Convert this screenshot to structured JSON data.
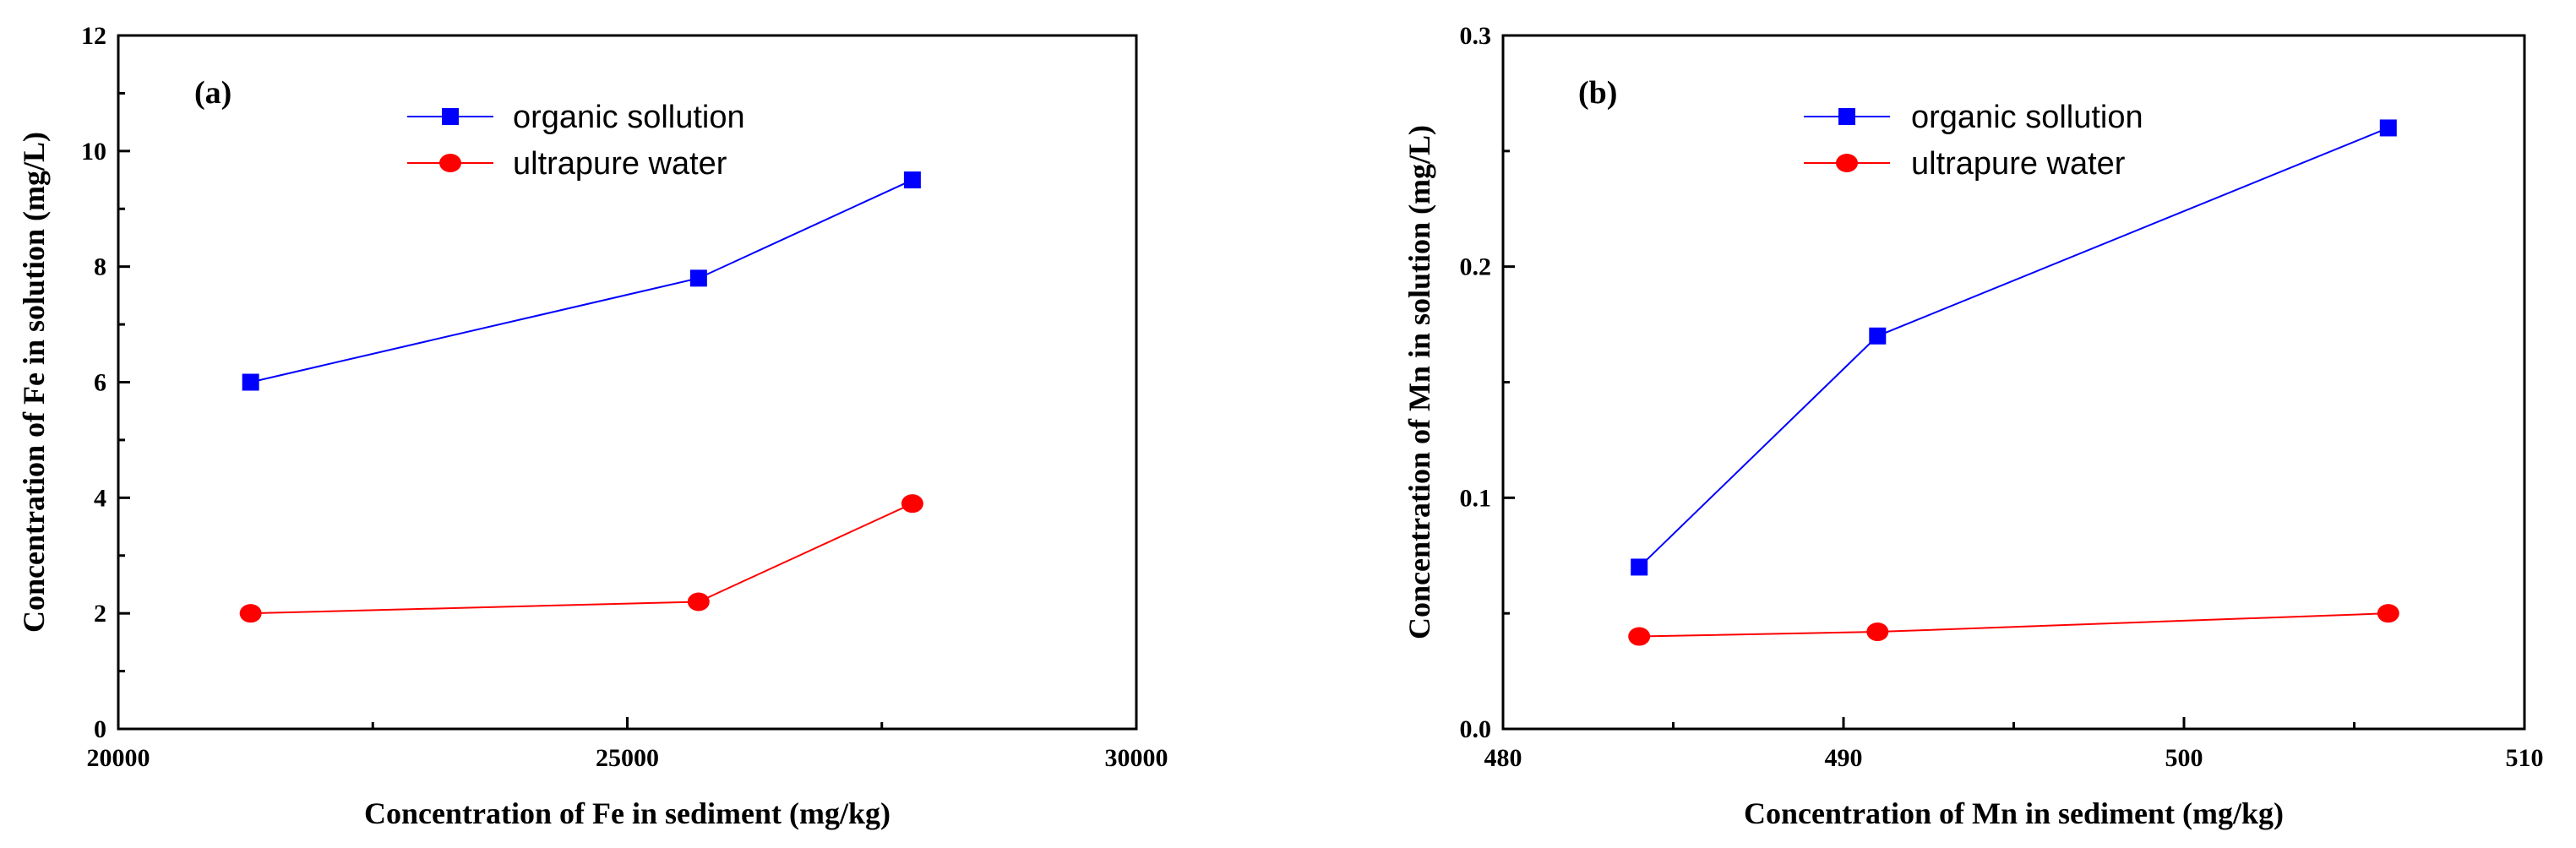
{
  "chart_data": [
    {
      "type": "line",
      "panel_label": "(a)",
      "xlabel": "Concentration of Fe in sediment (mg/kg)",
      "ylabel": "Concentration of Fe in solution (mg/L)",
      "xlim": [
        20000,
        30000
      ],
      "ylim": [
        0,
        12
      ],
      "xticks": [
        20000,
        25000,
        30000
      ],
      "xtick_labels": [
        "20000",
        "25000",
        "30000"
      ],
      "yticks": [
        0,
        2,
        4,
        6,
        8,
        10,
        12
      ],
      "ytick_labels": [
        "0",
        "2",
        "4",
        "6",
        "8",
        "10",
        "12"
      ],
      "legend_position": "top-center",
      "series": [
        {
          "name": "organic sollution",
          "color": "#0000ff",
          "marker": "square",
          "x": [
            21300,
            25700,
            27800
          ],
          "y": [
            6.0,
            7.8,
            9.5
          ]
        },
        {
          "name": "ultrapure water",
          "color": "#ff0000",
          "marker": "circle",
          "x": [
            21300,
            25700,
            27800
          ],
          "y": [
            2.0,
            2.2,
            3.9
          ]
        }
      ]
    },
    {
      "type": "line",
      "panel_label": "(b)",
      "xlabel": "Concentration of Mn in sediment (mg/kg)",
      "ylabel": "Concentration of Mn in solution (mg/L)",
      "xlim": [
        480,
        510
      ],
      "ylim": [
        0.0,
        0.3
      ],
      "xticks": [
        480,
        490,
        500,
        510
      ],
      "xtick_labels": [
        "480",
        "490",
        "500",
        "510"
      ],
      "yticks": [
        0.0,
        0.1,
        0.2,
        0.3
      ],
      "ytick_labels": [
        "0.0",
        "0.1",
        "0.2",
        "0.3"
      ],
      "legend_position": "top-center",
      "series": [
        {
          "name": "organic sollution",
          "color": "#0000ff",
          "marker": "square",
          "x": [
            484,
            491,
            506
          ],
          "y": [
            0.07,
            0.17,
            0.26
          ]
        },
        {
          "name": "ultrapure water",
          "color": "#ff0000",
          "marker": "circle",
          "x": [
            484,
            491,
            506
          ],
          "y": [
            0.04,
            0.042,
            0.05
          ]
        }
      ]
    }
  ]
}
